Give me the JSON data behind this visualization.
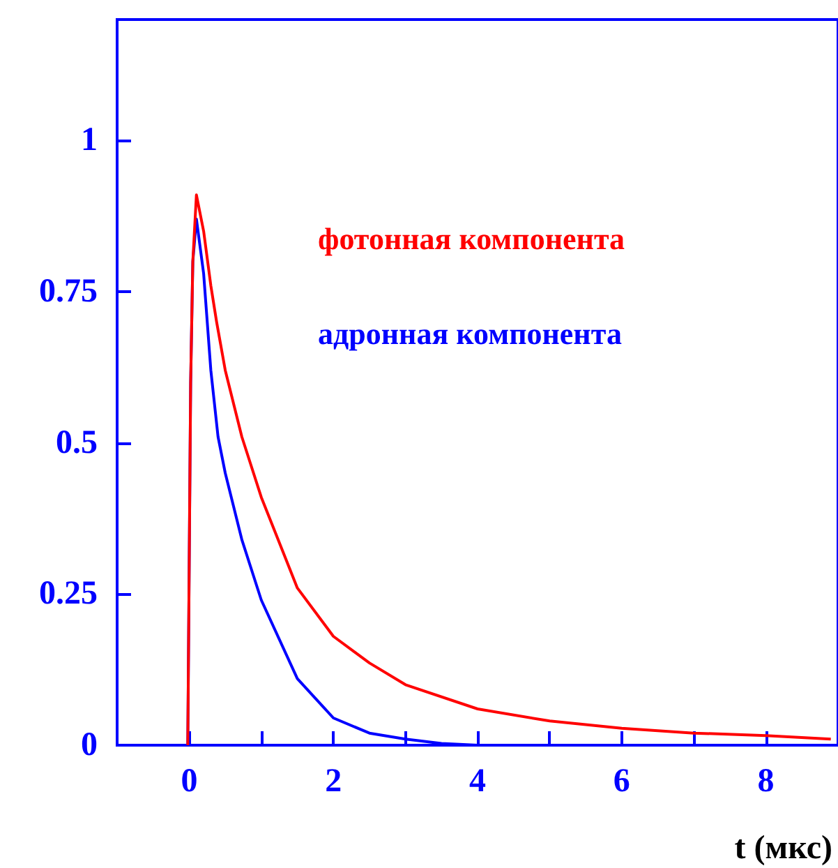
{
  "chart_data": {
    "type": "line",
    "xlabel": "t (мкс)",
    "xlim": [
      -1,
      9
    ],
    "ylim": [
      0,
      1.2
    ],
    "xticks": [
      0,
      {
        "value": 1,
        "label": null
      },
      2,
      {
        "value": 3,
        "label": null
      },
      4,
      {
        "value": 5,
        "label": null
      },
      6,
      {
        "value": 7,
        "label": null
      },
      8
    ],
    "yticks": [
      0,
      0.25,
      0.5,
      0.75,
      1
    ],
    "grid": false,
    "legend": false,
    "marker": "none",
    "line_style": "solid",
    "series": [
      {
        "name": "фотонная компонента",
        "color": "#ff0000",
        "x": [
          -0.02,
          0,
          0.02,
          0.05,
          0.1,
          0.2,
          0.3,
          0.38,
          0.5,
          0.73,
          1,
          1.5,
          2,
          2.5,
          3,
          4,
          5,
          6,
          7,
          8,
          8.9
        ],
        "values": [
          0,
          0.3,
          0.6,
          0.8,
          0.91,
          0.85,
          0.76,
          0.7,
          0.62,
          0.51,
          0.41,
          0.26,
          0.18,
          0.136,
          0.1,
          0.06,
          0.04,
          0.028,
          0.02,
          0.016,
          0.01
        ]
      },
      {
        "name": "адронная компонента",
        "color": "#0000ff",
        "x": [
          -0.02,
          0,
          0.02,
          0.05,
          0.1,
          0.2,
          0.3,
          0.4,
          0.5,
          0.73,
          1,
          1.5,
          2,
          2.5,
          3,
          3.5,
          4,
          5,
          6,
          7,
          8,
          8.9
        ],
        "values": [
          0,
          0.3,
          0.6,
          0.8,
          0.87,
          0.78,
          0.62,
          0.51,
          0.45,
          0.34,
          0.24,
          0.11,
          0.045,
          0.02,
          0.01,
          0.003,
          0,
          0,
          0,
          0,
          0,
          0
        ]
      }
    ]
  }
}
